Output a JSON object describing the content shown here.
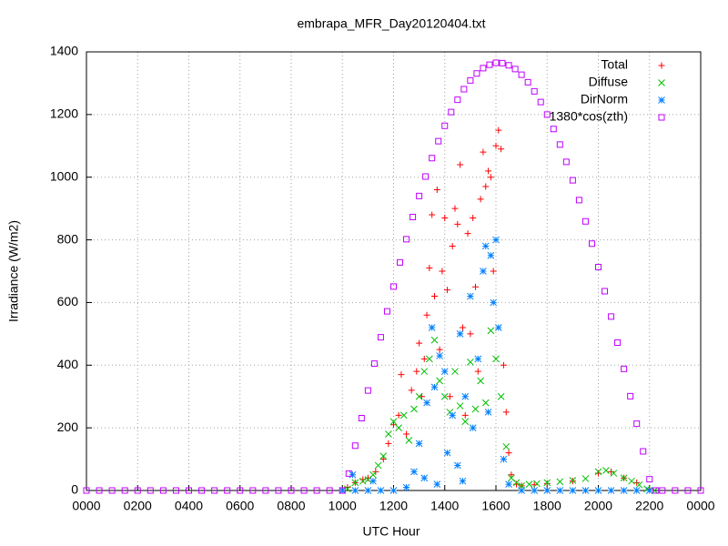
{
  "chart_data": {
    "type": "scatter",
    "title": "embrapa_MFR_Day20120404.txt",
    "x_label": "UTC Hour",
    "y_label": "Irradiance (W/m2)",
    "xlim": [
      0,
      24
    ],
    "ylim": [
      0,
      1400
    ],
    "xticks": [
      {
        "value": 0,
        "label": "0000"
      },
      {
        "value": 2,
        "label": "0200"
      },
      {
        "value": 4,
        "label": "0400"
      },
      {
        "value": 6,
        "label": "0600"
      },
      {
        "value": 8,
        "label": "0800"
      },
      {
        "value": 10,
        "label": "1000"
      },
      {
        "value": 12,
        "label": "1200"
      },
      {
        "value": 14,
        "label": "1400"
      },
      {
        "value": 16,
        "label": "1600"
      },
      {
        "value": 18,
        "label": "1800"
      },
      {
        "value": 20,
        "label": "2000"
      },
      {
        "value": 22,
        "label": "2200"
      },
      {
        "value": 24,
        "label": "0000"
      }
    ],
    "yticks": [
      0,
      200,
      400,
      600,
      800,
      1000,
      1200,
      1400
    ],
    "grid": true,
    "legend": "top right",
    "series": [
      {
        "name": "Total",
        "color": "#ff0000",
        "marker": "plus",
        "x": [
          10.2,
          10.5,
          10.8,
          11,
          11.3,
          11.6,
          11.8,
          12,
          12.2,
          12.3,
          12.5,
          12.7,
          12.9,
          13,
          13.1,
          13.2,
          13.3,
          13.4,
          13.5,
          13.6,
          13.7,
          13.8,
          13.9,
          14,
          14.1,
          14.2,
          14.3,
          14.4,
          14.5,
          14.6,
          14.7,
          14.8,
          14.9,
          15,
          15.1,
          15.2,
          15.3,
          15.4,
          15.5,
          15.6,
          15.7,
          15.8,
          15.9,
          16,
          16.1,
          16.2,
          16.3,
          16.4,
          16.5,
          16.6,
          16.8,
          17,
          17.5,
          18,
          19,
          20,
          20.5,
          21,
          21.5,
          22
        ],
        "values": [
          10,
          25,
          35,
          40,
          60,
          100,
          150,
          210,
          240,
          370,
          180,
          320,
          380,
          470,
          300,
          420,
          560,
          710,
          880,
          620,
          960,
          450,
          700,
          870,
          640,
          300,
          780,
          900,
          850,
          1040,
          520,
          240,
          820,
          500,
          870,
          650,
          380,
          930,
          1080,
          970,
          1020,
          1000,
          700,
          1100,
          1150,
          1090,
          400,
          250,
          120,
          50,
          20,
          15,
          18,
          22,
          30,
          55,
          60,
          40,
          25,
          5
        ]
      },
      {
        "name": "Diffuse",
        "color": "#00c000",
        "marker": "cross",
        "x": [
          10.2,
          10.5,
          10.8,
          11,
          11.2,
          11.4,
          11.6,
          11.8,
          12,
          12.2,
          12.4,
          12.6,
          12.8,
          13,
          13.2,
          13.4,
          13.6,
          13.8,
          14,
          14.2,
          14.4,
          14.6,
          14.8,
          15,
          15.2,
          15.4,
          15.6,
          15.8,
          16,
          16.2,
          16.4,
          16.6,
          16.8,
          17,
          17.3,
          17.6,
          18,
          18.5,
          19,
          19.5,
          20,
          20.3,
          20.6,
          21,
          21.3,
          21.6,
          21.9,
          22.2
        ],
        "values": [
          5,
          25,
          30,
          35,
          50,
          80,
          110,
          180,
          220,
          200,
          240,
          160,
          260,
          300,
          380,
          420,
          480,
          350,
          300,
          250,
          380,
          270,
          220,
          410,
          260,
          350,
          280,
          510,
          420,
          300,
          140,
          40,
          25,
          15,
          20,
          22,
          25,
          28,
          32,
          38,
          60,
          64,
          55,
          40,
          30,
          18,
          5,
          0
        ]
      },
      {
        "name": "DirNorm",
        "color": "#0080ff",
        "marker": "star",
        "x": [
          10,
          10.4,
          10.5,
          11,
          11.2,
          11.5,
          12,
          12.5,
          12.8,
          13,
          13.2,
          13.3,
          13.5,
          13.6,
          13.7,
          13.8,
          14,
          14.1,
          14.3,
          14.5,
          14.6,
          14.7,
          14.8,
          15,
          15.1,
          15.3,
          15.5,
          15.6,
          15.7,
          15.8,
          15.9,
          16,
          16.1,
          16.3,
          16.5,
          17,
          17.5,
          18,
          18.5,
          19,
          19.5,
          20,
          20.5,
          21,
          21.5,
          22
        ],
        "values": [
          0,
          50,
          0,
          0,
          30,
          0,
          0,
          10,
          60,
          150,
          40,
          280,
          520,
          330,
          20,
          430,
          380,
          120,
          240,
          80,
          500,
          30,
          300,
          620,
          200,
          420,
          700,
          780,
          250,
          750,
          600,
          800,
          520,
          100,
          20,
          0,
          0,
          0,
          0,
          0,
          0,
          0,
          0,
          0,
          0,
          0
        ]
      },
      {
        "name": "1380*cos(zth)",
        "color": "#c000ff",
        "marker": "square",
        "x": [
          0,
          0.5,
          1,
          1.5,
          2,
          2.5,
          3,
          3.5,
          4,
          4.5,
          5,
          5.5,
          6,
          6.5,
          7,
          7.5,
          8,
          8.5,
          9,
          9.5,
          10,
          10.25,
          10.5,
          10.75,
          11,
          11.25,
          11.5,
          11.75,
          12,
          12.25,
          12.5,
          12.75,
          13,
          13.25,
          13.5,
          13.75,
          14,
          14.25,
          14.5,
          14.75,
          15,
          15.25,
          15.5,
          15.75,
          16,
          16.25,
          16.5,
          16.75,
          17,
          17.25,
          17.5,
          17.75,
          18,
          18.25,
          18.5,
          18.75,
          19,
          19.25,
          19.5,
          19.75,
          20,
          20.25,
          20.5,
          20.75,
          21,
          21.25,
          21.5,
          21.75,
          22,
          22.25,
          22.5,
          23,
          23.5,
          24
        ],
        "values": [
          0,
          0,
          0,
          0,
          0,
          0,
          0,
          0,
          0,
          0,
          0,
          0,
          0,
          0,
          0,
          0,
          0,
          0,
          0,
          0,
          0,
          54,
          143,
          231,
          319,
          405,
          489,
          572,
          651,
          728,
          802,
          873,
          940,
          1002,
          1061,
          1115,
          1164,
          1208,
          1247,
          1281,
          1309,
          1331,
          1348,
          1359,
          1365,
          1364,
          1357,
          1345,
          1327,
          1303,
          1274,
          1240,
          1200,
          1154,
          1104,
          1049,
          990,
          927,
          859,
          788,
          713,
          636,
          555,
          472,
          388,
          301,
          213,
          125,
          36,
          0,
          0,
          0,
          0,
          0
        ]
      }
    ]
  }
}
